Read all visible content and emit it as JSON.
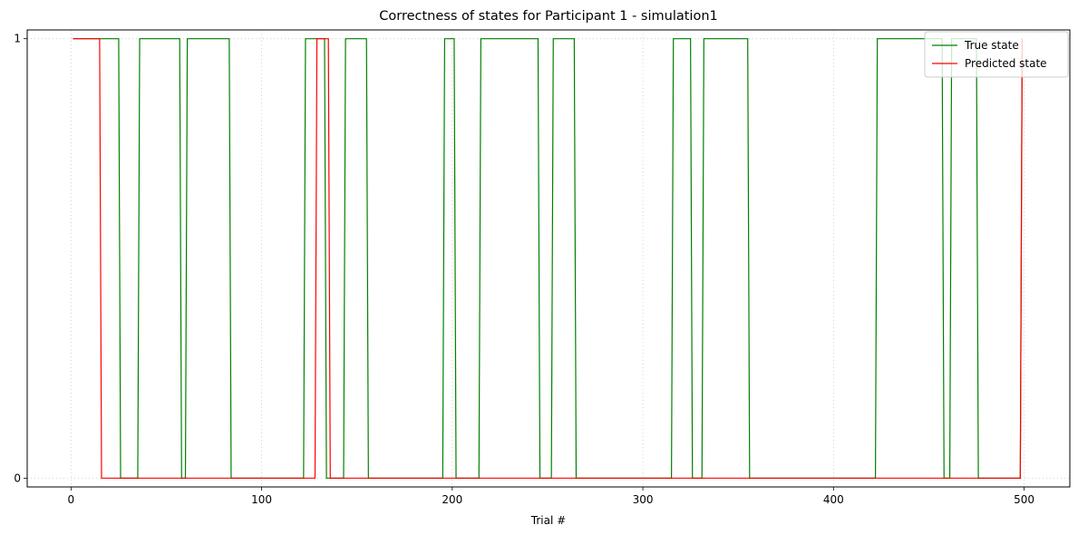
{
  "chart_data": {
    "type": "line",
    "title": "Correctness of states for Participant 1 - simulation1",
    "xlabel": "Trial #",
    "ylabel": "",
    "xlim": [
      -23,
      524
    ],
    "ylim": [
      -0.02,
      1.02
    ],
    "xticks": [
      0,
      100,
      200,
      300,
      400,
      500
    ],
    "yticks": [
      0,
      1
    ],
    "grid": true,
    "legend_position": "upper right",
    "series": [
      {
        "name": "True state",
        "color": "#008000",
        "x": [
          1,
          25,
          26,
          35,
          36,
          57,
          58,
          60,
          61,
          83,
          84,
          122,
          123,
          133,
          134,
          136,
          137,
          143,
          144,
          155,
          156,
          195,
          196,
          201,
          202,
          214,
          215,
          245,
          246,
          252,
          253,
          264,
          265,
          315,
          316,
          325,
          326,
          331,
          332,
          355,
          356,
          422,
          423,
          457,
          458,
          461,
          462,
          475,
          476,
          498,
          499
        ],
        "y": [
          1,
          1,
          0,
          0,
          1,
          1,
          0,
          0,
          1,
          1,
          0,
          0,
          1,
          1,
          0,
          0,
          0,
          0,
          1,
          1,
          0,
          0,
          1,
          1,
          0,
          0,
          1,
          1,
          0,
          0,
          1,
          1,
          0,
          0,
          1,
          1,
          0,
          0,
          1,
          1,
          0,
          0,
          1,
          1,
          0,
          0,
          1,
          1,
          0,
          0,
          1
        ]
      },
      {
        "name": "Predicted state",
        "color": "#ff0000",
        "x": [
          1,
          15,
          16,
          128,
          129,
          135,
          136,
          498,
          499
        ],
        "y": [
          1,
          1,
          0,
          0,
          1,
          1,
          0,
          0,
          1
        ]
      }
    ]
  }
}
